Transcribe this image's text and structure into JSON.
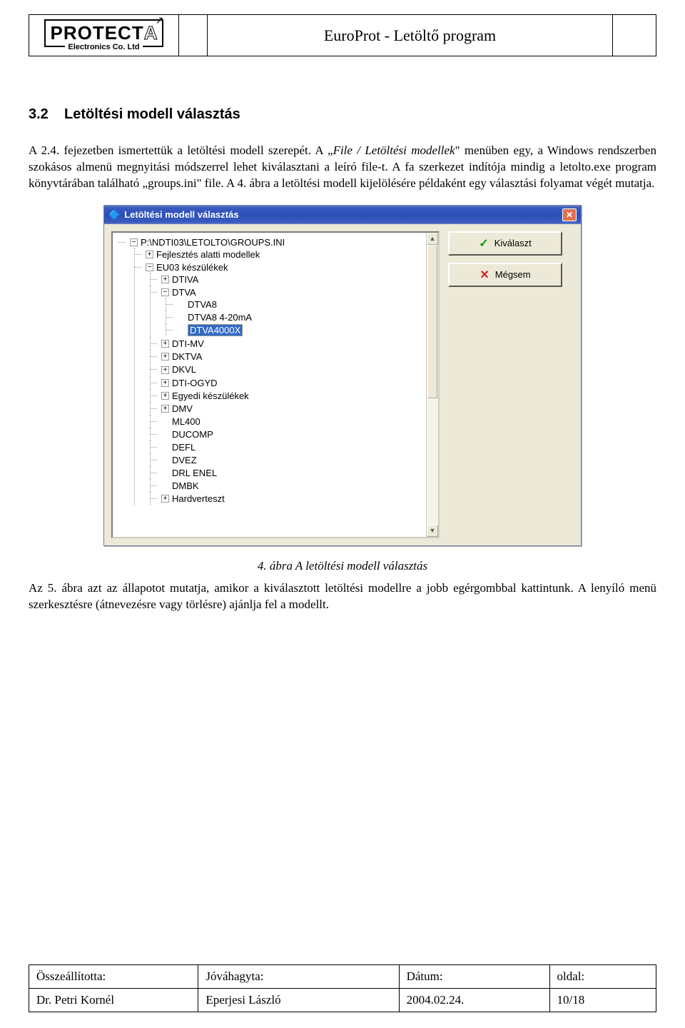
{
  "header": {
    "brand": "PROTECT",
    "brand_suffix": "A",
    "sub": "Electronics Co. Ltd",
    "title": "EuroProt - Letöltő program"
  },
  "section": {
    "num": "3.2",
    "title": "Letöltési modell választás"
  },
  "para1_a": "A 2.4. fejezetben ismertettük a letöltési modell szerepét. A „",
  "para1_i": "File / Letöltési modellek",
  "para1_b": "\" menüben egy, a Windows rendszerben szokásos almenü megnyitási módszerrel lehet kiválasztani a leíró file-t. A fa szerkezet indítója mindig a letolto.exe program könyvtárában található „groups.ini\" file. A 4. ábra a letöltési modell kijelölésére példaként egy választási folyamat végét mutatja.",
  "dialog": {
    "title": "Letöltési modell választás",
    "btn_select": "Kiválaszt",
    "btn_cancel": "Mégsem",
    "tree": {
      "root": "P:\\NDTI03\\LETOLTO\\GROUPS.INI",
      "n1": "Fejlesztés alatti modellek",
      "n2": "EU03 készülékek",
      "n2_1": "DTIVA",
      "n2_2": "DTVA",
      "n2_2_1": "DTVA8",
      "n2_2_2": "DTVA8 4-20mA",
      "n2_2_3": "DTVA4000X",
      "n2_3": "DTI-MV",
      "n2_4": "DKTVA",
      "n2_5": "DKVL",
      "n2_6": "DTI-OGYD",
      "n2_7": "Egyedi készülékek",
      "n2_8": "DMV",
      "n2_9": "ML400",
      "n2_10": "DUCOMP",
      "n2_11": "DEFL",
      "n2_12": "DVEZ",
      "n2_13": "DRL ENEL",
      "n2_14": "DMBK",
      "n2_15": "Hardverteszt"
    }
  },
  "caption": "4. ábra A letöltési modell választás",
  "para2": "Az 5. ábra azt az állapotot mutatja, amikor a kiválasztott letöltési modellre a jobb egérgombbal kattintunk. A lenyíló menü szerkesztésre (átnevezésre vagy törlésre) ajánlja fel a modellt.",
  "footer": {
    "h1": "Összeállította:",
    "h2": "Jóváhagyta:",
    "h3": "Dátum:",
    "h4": "oldal:",
    "v1": "Dr. Petri Kornél",
    "v2": "Eperjesi László",
    "v3": "2004.02.24.",
    "v4": "10/18"
  }
}
